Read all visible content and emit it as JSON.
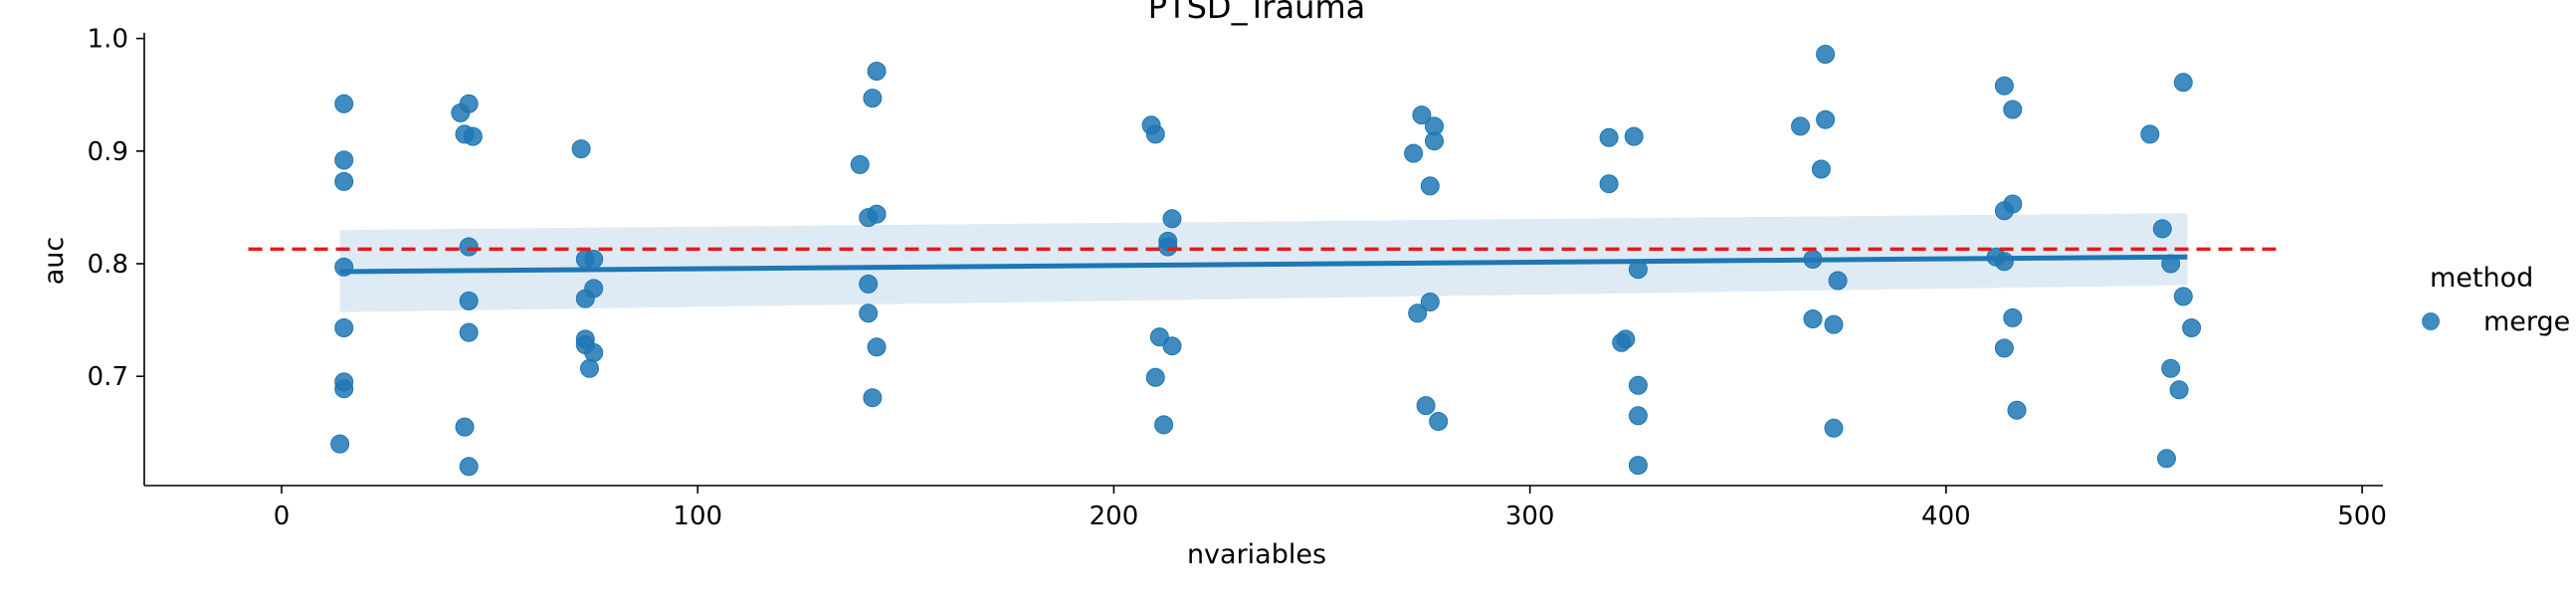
{
  "chart_data": {
    "type": "scatter",
    "title": "PTSD_Trauma",
    "xlabel": "nvariables",
    "ylabel": "auc",
    "xlim": [
      -33,
      505
    ],
    "ylim": [
      0.603,
      1.005
    ],
    "xticks": [
      0,
      100,
      200,
      300,
      400,
      500
    ],
    "yticks": [
      0.7,
      0.8,
      0.9,
      1.0
    ],
    "xtick_labels": [
      "0",
      "100",
      "200",
      "300",
      "400",
      "500"
    ],
    "ytick_labels": [
      "0.7",
      "0.8",
      "0.9",
      "1.0"
    ],
    "grid": false,
    "legend": {
      "title": "method",
      "placement": "right",
      "entries": [
        {
          "label": "merge",
          "color": "#1f77b4"
        }
      ]
    },
    "colors": {
      "points": "#1f77b4",
      "reference_line": "#e41a1c"
    },
    "reference_line": {
      "y": 0.813,
      "style": "dashed",
      "x_range": [
        -8,
        480
      ]
    },
    "regression": {
      "x_range": [
        14,
        458
      ],
      "y_start": 0.793,
      "y_end": 0.806,
      "ci_lower": [
        0.757,
        0.781
      ],
      "ci_upper": [
        0.83,
        0.845
      ]
    },
    "series": [
      {
        "values": [
          [
            15,
            0.942
          ],
          [
            15,
            0.892
          ],
          [
            15,
            0.873
          ],
          [
            15,
            0.797
          ],
          [
            15,
            0.743
          ],
          [
            15,
            0.695
          ],
          [
            15,
            0.689
          ],
          [
            14,
            0.64
          ],
          [
            43,
            0.934
          ],
          [
            45,
            0.942
          ],
          [
            44,
            0.915
          ],
          [
            46,
            0.913
          ],
          [
            45,
            0.815
          ],
          [
            45,
            0.767
          ],
          [
            45,
            0.739
          ],
          [
            44,
            0.655
          ],
          [
            45,
            0.62
          ],
          [
            72,
            0.902
          ],
          [
            73,
            0.804
          ],
          [
            75,
            0.804
          ],
          [
            75,
            0.778
          ],
          [
            73,
            0.769
          ],
          [
            73,
            0.733
          ],
          [
            73,
            0.728
          ],
          [
            75,
            0.721
          ],
          [
            74,
            0.707
          ],
          [
            139,
            0.888
          ],
          [
            143,
            0.971
          ],
          [
            142,
            0.947
          ],
          [
            143,
            0.844
          ],
          [
            141,
            0.841
          ],
          [
            141,
            0.782
          ],
          [
            141,
            0.756
          ],
          [
            143,
            0.726
          ],
          [
            142,
            0.681
          ],
          [
            209,
            0.923
          ],
          [
            210,
            0.915
          ],
          [
            214,
            0.84
          ],
          [
            213,
            0.82
          ],
          [
            213,
            0.815
          ],
          [
            211,
            0.735
          ],
          [
            214,
            0.727
          ],
          [
            210,
            0.699
          ],
          [
            212,
            0.657
          ],
          [
            274,
            0.932
          ],
          [
            277,
            0.922
          ],
          [
            272,
            0.898
          ],
          [
            277,
            0.909
          ],
          [
            276,
            0.869
          ],
          [
            276,
            0.766
          ],
          [
            273,
            0.756
          ],
          [
            275,
            0.674
          ],
          [
            278,
            0.66
          ],
          [
            319,
            0.912
          ],
          [
            325,
            0.913
          ],
          [
            319,
            0.871
          ],
          [
            326,
            0.795
          ],
          [
            323,
            0.733
          ],
          [
            322,
            0.73
          ],
          [
            326,
            0.692
          ],
          [
            326,
            0.665
          ],
          [
            326,
            0.621
          ],
          [
            371,
            0.986
          ],
          [
            371,
            0.928
          ],
          [
            365,
            0.922
          ],
          [
            370,
            0.884
          ],
          [
            368,
            0.804
          ],
          [
            374,
            0.785
          ],
          [
            368,
            0.751
          ],
          [
            373,
            0.746
          ],
          [
            373,
            0.654
          ],
          [
            414,
            0.958
          ],
          [
            416,
            0.937
          ],
          [
            416,
            0.853
          ],
          [
            414,
            0.847
          ],
          [
            412,
            0.806
          ],
          [
            414,
            0.802
          ],
          [
            416,
            0.752
          ],
          [
            414,
            0.725
          ],
          [
            417,
            0.67
          ],
          [
            457,
            0.961
          ],
          [
            449,
            0.915
          ],
          [
            452,
            0.831
          ],
          [
            454,
            0.8
          ],
          [
            457,
            0.771
          ],
          [
            459,
            0.743
          ],
          [
            454,
            0.707
          ],
          [
            456,
            0.688
          ],
          [
            453,
            0.627
          ]
        ]
      }
    ]
  }
}
